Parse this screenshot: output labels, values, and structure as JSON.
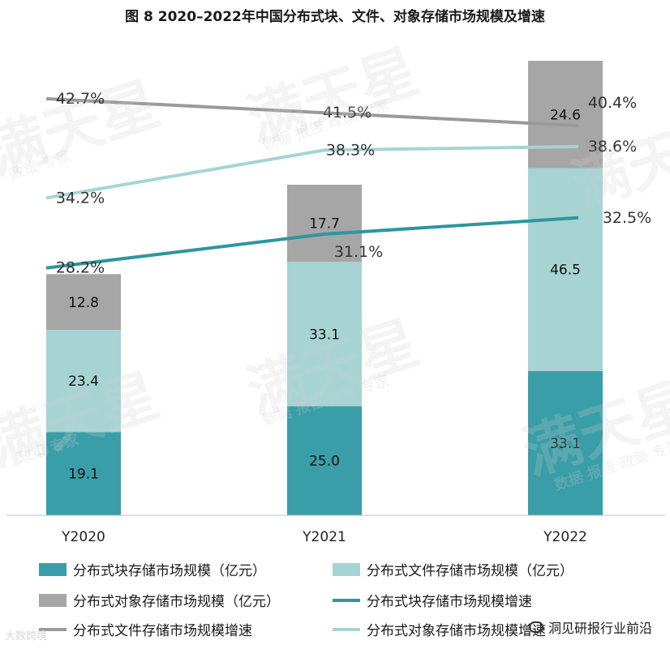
{
  "title": "图 8 2020–2022年中国分布式块、文件、对象存储市场规模及增速",
  "chart_data": {
    "type": "bar",
    "stacked": true,
    "categories": [
      "Y2020",
      "Y2021",
      "Y2022"
    ],
    "series": [
      {
        "name": "分布式块存储市场规模（亿元）",
        "kind": "bar",
        "color": "#3a9ea9",
        "values": [
          19.1,
          25.0,
          33.1
        ],
        "labels": [
          "19.1",
          "25.0",
          "33.1"
        ]
      },
      {
        "name": "分布式文件存储市场规模（亿元）",
        "kind": "bar",
        "color": "#a7d3d3",
        "values": [
          23.4,
          33.1,
          46.5
        ],
        "labels": [
          "23.4",
          "33.1",
          "46.5"
        ]
      },
      {
        "name": "分布式对象存储市场规模（亿元）",
        "kind": "bar",
        "color": "#a6a6a6",
        "values": [
          12.8,
          17.7,
          24.6
        ],
        "labels": [
          "12.8",
          "17.7",
          "24.6"
        ]
      },
      {
        "name": "分布式块存储市场规模增速",
        "kind": "line",
        "color": "#2e96a0",
        "values": [
          28.2,
          31.1,
          32.5
        ],
        "labels": [
          "28.2%",
          "31.1%",
          "32.5%"
        ]
      },
      {
        "name": "分布式文件存储市场规模增速",
        "kind": "line",
        "color": "#9a9a9a",
        "values": [
          42.7,
          41.5,
          40.4
        ],
        "labels": [
          "42.7%",
          "41.5%",
          "40.4%"
        ]
      },
      {
        "name": "分布式对象存储市场规模增速",
        "kind": "line",
        "color": "#a6d4d4",
        "values": [
          34.2,
          38.3,
          38.6
        ],
        "labels": [
          "34.2%",
          "38.3%",
          "38.6%"
        ]
      }
    ],
    "bar_axis_max": 107,
    "line_axis_range": [
      7,
      47
    ],
    "grid": false,
    "legend_position": "bottom"
  },
  "watermark": {
    "main": "满天星",
    "sub1": "数据 报告 政策 专家",
    "sub2": "政策 专家"
  },
  "footer": {
    "left": "大数跨境",
    "right": "洞见研报行业前沿"
  }
}
